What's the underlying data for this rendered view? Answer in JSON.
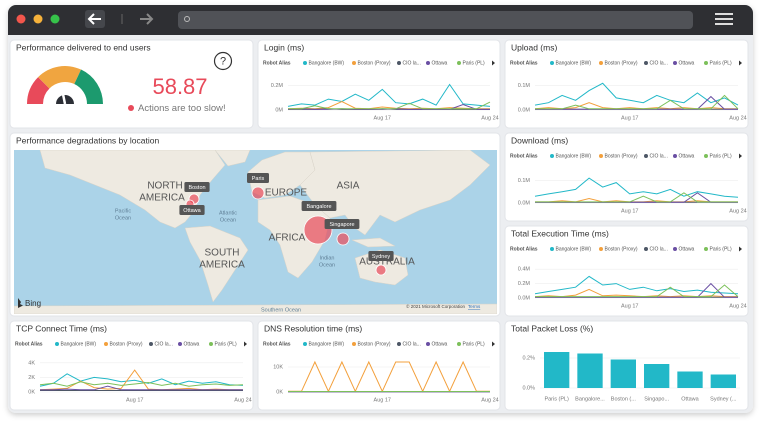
{
  "kpi": {
    "title": "Performance delivered to end users",
    "help": "?",
    "value": 58.87,
    "status": "Actions are too slow!"
  },
  "map": {
    "title": "Performance degradations by location",
    "labels": [
      "NORTH",
      "AMERICA",
      "EUROPE",
      "ASIA",
      "AFRICA",
      "SOUTH",
      "AMERICA",
      "AUSTRALIA"
    ],
    "oceans": [
      "Pacific",
      "Ocean",
      "Atlantic",
      "Ocean",
      "Indian",
      "Ocean",
      "Southern Ocean"
    ],
    "pins": [
      "Boston",
      "Ottawa",
      "Paris",
      "Bangalore",
      "Singapore",
      "Sydney"
    ],
    "logo": "Bing",
    "attribution": "© 2021 Microsoft Corporation",
    "terms": "Terms"
  },
  "chart_data": [
    {
      "type": "line",
      "title": "Login (ms)",
      "legend_title": "Robot Alias",
      "categories": [
        null,
        null,
        null,
        null,
        null,
        null,
        null,
        "Aug 17",
        null,
        null,
        null,
        null,
        null,
        null,
        null,
        "Aug 24"
      ],
      "ylim": [
        0,
        280000
      ],
      "yticks": [
        {
          "value": 0,
          "label": "0M"
        },
        {
          "value": 200000,
          "label": "0.2M"
        }
      ],
      "series": [
        {
          "name": "Bangalore (BW)",
          "color": "#22b8c8",
          "values": [
            30000,
            50000,
            40000,
            90000,
            70000,
            130000,
            80000,
            170000,
            60000,
            50000,
            90000,
            40000,
            210000,
            50000,
            40000,
            30000
          ]
        },
        {
          "name": "Boston (Proxy)",
          "color": "#f3a03c",
          "values": [
            10000,
            15000,
            10000,
            20000,
            70000,
            15000,
            10000,
            25000,
            15000,
            10000,
            15000,
            10000,
            20000,
            15000,
            10000,
            10000
          ]
        },
        {
          "name": "CIO la...",
          "color": "#4d5766",
          "values": [
            5000,
            5000,
            5000,
            10000,
            5000,
            5000,
            5000,
            10000,
            5000,
            5000,
            5000,
            5000,
            5000,
            5000,
            5000,
            5000
          ]
        },
        {
          "name": "Ottawa",
          "color": "#6a4fa3",
          "values": [
            5000,
            10000,
            5000,
            5000,
            10000,
            5000,
            5000,
            5000,
            10000,
            5000,
            5000,
            5000,
            5000,
            45000,
            5000,
            5000
          ]
        },
        {
          "name": "Paris (PL)",
          "color": "#7cc05a",
          "values": [
            10000,
            10000,
            35000,
            10000,
            10000,
            10000,
            10000,
            10000,
            10000,
            55000,
            10000,
            10000,
            10000,
            10000,
            10000,
            65000
          ]
        }
      ]
    },
    {
      "type": "line",
      "title": "Upload (ms)",
      "legend_title": "Robot Alias",
      "categories": [
        null,
        null,
        null,
        null,
        null,
        null,
        null,
        "Aug 17",
        null,
        null,
        null,
        null,
        null,
        null,
        null,
        "Aug 24"
      ],
      "ylim": [
        0,
        140000
      ],
      "yticks": [
        {
          "value": 0,
          "label": "0.0M"
        },
        {
          "value": 100000,
          "label": "0.1M"
        }
      ],
      "series": [
        {
          "name": "Bangalore (BW)",
          "color": "#22b8c8",
          "values": [
            20000,
            30000,
            60000,
            40000,
            80000,
            110000,
            50000,
            40000,
            30000,
            60000,
            40000,
            30000,
            70000,
            30000,
            50000,
            20000
          ]
        },
        {
          "name": "Boston (Proxy)",
          "color": "#f3a03c",
          "values": [
            5000,
            10000,
            5000,
            10000,
            30000,
            10000,
            5000,
            10000,
            5000,
            10000,
            5000,
            10000,
            5000,
            10000,
            5000,
            5000
          ]
        },
        {
          "name": "CIO la...",
          "color": "#4d5766",
          "values": [
            3000,
            3000,
            3000,
            3000,
            3000,
            3000,
            3000,
            3000,
            3000,
            3000,
            3000,
            3000,
            3000,
            3000,
            3000,
            3000
          ]
        },
        {
          "name": "Ottawa",
          "color": "#6a4fa3",
          "values": [
            3000,
            3000,
            3000,
            3000,
            3000,
            3000,
            3000,
            3000,
            3000,
            3000,
            3000,
            3000,
            3000,
            55000,
            3000,
            3000
          ]
        },
        {
          "name": "Paris (PL)",
          "color": "#7cc05a",
          "values": [
            5000,
            5000,
            5000,
            20000,
            5000,
            5000,
            5000,
            5000,
            5000,
            5000,
            40000,
            5000,
            5000,
            5000,
            60000,
            5000
          ]
        }
      ]
    },
    {
      "type": "line",
      "title": "Download (ms)",
      "legend_title": "Robot Alias",
      "categories": [
        null,
        null,
        null,
        null,
        null,
        null,
        null,
        "Aug 17",
        null,
        null,
        null,
        null,
        null,
        null,
        null,
        "Aug 24"
      ],
      "ylim": [
        0,
        150000
      ],
      "yticks": [
        {
          "value": 0,
          "label": "0.0M"
        },
        {
          "value": 100000,
          "label": "0.1M"
        }
      ],
      "series": [
        {
          "name": "Bangalore (BW)",
          "color": "#22b8c8",
          "values": [
            30000,
            40000,
            50000,
            60000,
            110000,
            70000,
            90000,
            40000,
            50000,
            40000,
            60000,
            30000,
            50000,
            40000,
            30000,
            25000
          ]
        },
        {
          "name": "Boston (Proxy)",
          "color": "#f3a03c",
          "values": [
            5000,
            5000,
            10000,
            5000,
            20000,
            5000,
            10000,
            5000,
            5000,
            10000,
            5000,
            5000,
            10000,
            5000,
            5000,
            5000
          ]
        },
        {
          "name": "CIO la...",
          "color": "#4d5766",
          "values": [
            3000,
            3000,
            3000,
            3000,
            3000,
            3000,
            3000,
            3000,
            3000,
            3000,
            3000,
            3000,
            3000,
            3000,
            3000,
            3000
          ]
        },
        {
          "name": "Ottawa",
          "color": "#6a4fa3",
          "values": [
            3000,
            3000,
            3000,
            3000,
            3000,
            3000,
            3000,
            3000,
            3000,
            3000,
            3000,
            3000,
            45000,
            3000,
            3000,
            3000
          ]
        },
        {
          "name": "Paris (PL)",
          "color": "#7cc05a",
          "values": [
            5000,
            5000,
            5000,
            5000,
            5000,
            5000,
            5000,
            5000,
            30000,
            5000,
            5000,
            45000,
            5000,
            5000,
            5000,
            5000
          ]
        }
      ]
    },
    {
      "type": "line",
      "title": "Total Execution Time (ms)",
      "legend_title": "Robot Alias",
      "categories": [
        null,
        null,
        null,
        null,
        null,
        null,
        null,
        "Aug 17",
        null,
        null,
        null,
        null,
        null,
        null,
        null,
        "Aug 24"
      ],
      "ylim": [
        0,
        500000
      ],
      "yticks": [
        {
          "value": 0,
          "label": "0.0M"
        },
        {
          "value": 200000,
          "label": "0.2M"
        },
        {
          "value": 400000,
          "label": "0.4M"
        }
      ],
      "series": [
        {
          "name": "Bangalore (BW)",
          "color": "#22b8c8",
          "values": [
            60000,
            90000,
            120000,
            150000,
            300000,
            180000,
            200000,
            120000,
            150000,
            100000,
            130000,
            90000,
            110000,
            80000,
            70000,
            60000
          ]
        },
        {
          "name": "Boston (Proxy)",
          "color": "#f3a03c",
          "values": [
            20000,
            30000,
            20000,
            40000,
            120000,
            30000,
            40000,
            30000,
            20000,
            30000,
            20000,
            30000,
            20000,
            30000,
            20000,
            20000
          ]
        },
        {
          "name": "CIO la...",
          "color": "#4d5766",
          "values": [
            10000,
            10000,
            10000,
            10000,
            10000,
            10000,
            10000,
            10000,
            10000,
            10000,
            10000,
            10000,
            10000,
            10000,
            10000,
            10000
          ]
        },
        {
          "name": "Ottawa",
          "color": "#6a4fa3",
          "values": [
            10000,
            10000,
            10000,
            10000,
            10000,
            10000,
            10000,
            10000,
            10000,
            10000,
            10000,
            10000,
            10000,
            200000,
            10000,
            10000
          ]
        },
        {
          "name": "Paris (PL)",
          "color": "#7cc05a",
          "values": [
            20000,
            20000,
            20000,
            20000,
            20000,
            20000,
            20000,
            20000,
            20000,
            20000,
            150000,
            20000,
            20000,
            20000,
            180000,
            20000
          ]
        }
      ]
    },
    {
      "type": "line",
      "title": "TCP Connect Time (ms)",
      "legend_title": "Robot Alias",
      "categories": [
        null,
        null,
        null,
        null,
        null,
        null,
        null,
        "Aug 17",
        null,
        null,
        null,
        null,
        null,
        null,
        null,
        "Aug 24"
      ],
      "ylim": [
        0,
        4800
      ],
      "yticks": [
        {
          "value": 0,
          "label": "0K"
        },
        {
          "value": 2000,
          "label": "2K"
        },
        {
          "value": 4000,
          "label": "4K"
        }
      ],
      "series": [
        {
          "name": "Bangalore (BW)",
          "color": "#22b8c8",
          "values": [
            800,
            1200,
            2500,
            1500,
            2000,
            1800,
            1400,
            1600,
            1200,
            1800,
            1000,
            1500,
            1200,
            1400,
            1000,
            900
          ]
        },
        {
          "name": "Boston (Proxy)",
          "color": "#f3a03c",
          "values": [
            300,
            400,
            500,
            1500,
            600,
            400,
            500,
            3000,
            400,
            300,
            400,
            500,
            300,
            400,
            300,
            300
          ]
        },
        {
          "name": "CIO la...",
          "color": "#4d5766",
          "values": [
            200,
            200,
            200,
            200,
            200,
            200,
            200,
            200,
            200,
            200,
            200,
            200,
            200,
            200,
            200,
            200
          ]
        },
        {
          "name": "Ottawa",
          "color": "#6a4fa3",
          "values": [
            300,
            300,
            400,
            300,
            300,
            800,
            300,
            300,
            300,
            300,
            300,
            300,
            300,
            300,
            300,
            300
          ]
        },
        {
          "name": "Paris (PL)",
          "color": "#7cc05a",
          "values": [
            1000,
            1200,
            800,
            1400,
            1000,
            1200,
            900,
            1100,
            1300,
            900,
            1200,
            800,
            1000,
            1100,
            900,
            1000
          ]
        }
      ]
    },
    {
      "type": "line",
      "title": "DNS Resolution time (ms)",
      "legend_title": "Robot Alias",
      "categories": [
        null,
        null,
        null,
        null,
        null,
        null,
        null,
        "Aug 17",
        null,
        null,
        null,
        null,
        null,
        null,
        null,
        "Aug 24"
      ],
      "ylim": [
        0,
        14000
      ],
      "yticks": [
        {
          "value": 0,
          "label": "0K"
        },
        {
          "value": 10000,
          "label": "10K"
        }
      ],
      "series": [
        {
          "name": "Bangalore (BW)",
          "color": "#22b8c8",
          "values": [
            200,
            200,
            200,
            200,
            200,
            200,
            200,
            200,
            200,
            200,
            200,
            200,
            200,
            200,
            200,
            200
          ]
        },
        {
          "name": "Boston (Proxy)",
          "color": "#f3a03c",
          "values": [
            300,
            300,
            12000,
            300,
            12000,
            300,
            12000,
            300,
            12000,
            12000,
            300,
            12000,
            300,
            12000,
            300,
            300
          ]
        },
        {
          "name": "CIO la...",
          "color": "#4d5766",
          "values": [
            100,
            100,
            100,
            100,
            100,
            100,
            100,
            100,
            100,
            100,
            100,
            100,
            100,
            100,
            100,
            100
          ]
        },
        {
          "name": "Ottawa",
          "color": "#6a4fa3",
          "values": [
            100,
            100,
            100,
            100,
            100,
            100,
            100,
            100,
            100,
            100,
            100,
            100,
            100,
            100,
            100,
            100
          ]
        },
        {
          "name": "Paris (PL)",
          "color": "#7cc05a",
          "values": [
            200,
            200,
            200,
            200,
            200,
            200,
            200,
            200,
            200,
            200,
            200,
            200,
            200,
            200,
            200,
            200
          ]
        }
      ]
    },
    {
      "type": "bar",
      "title": "Total Packet Loss (%)",
      "categories": [
        "Paris (PL)",
        "Bangalore...",
        "Boston (...",
        "Singapo...",
        "Ottawa",
        "Sydney (..."
      ],
      "values": [
        0.24,
        0.23,
        0.19,
        0.16,
        0.11,
        0.09
      ],
      "color": "#22b8c8",
      "ylim": [
        0,
        0.26
      ],
      "yticks": [
        {
          "value": 0,
          "label": "0.0%"
        },
        {
          "value": 0.2,
          "label": "0.2%"
        }
      ]
    }
  ]
}
